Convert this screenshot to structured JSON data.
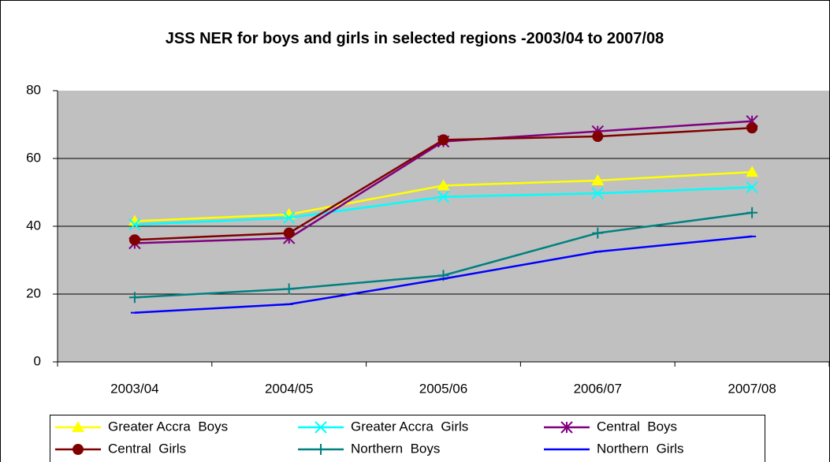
{
  "chart_data": {
    "type": "line",
    "title": "JSS NER for boys and girls in selected regions -2003/04 to 2007/08",
    "categories": [
      "2003/04",
      "2004/05",
      "2005/06",
      "2006/07",
      "2007/08"
    ],
    "series": [
      {
        "name": "Greater Accra  Boys",
        "color": "#ffff00",
        "marker": "triangle",
        "values": [
          41.5,
          43.5,
          52,
          53.5,
          56
        ]
      },
      {
        "name": "Greater Accra  Girls",
        "color": "#00ffff",
        "marker": "x",
        "values": [
          40.5,
          42.5,
          48.7,
          49.7,
          51.5
        ]
      },
      {
        "name": "Central  Boys",
        "color": "#800080",
        "marker": "asterisk",
        "values": [
          35,
          36.5,
          65,
          68,
          71
        ]
      },
      {
        "name": "Central  Girls",
        "color": "#800000",
        "marker": "circle",
        "values": [
          36,
          38,
          65.5,
          66.5,
          69
        ]
      },
      {
        "name": "Northern  Boys",
        "color": "#008080",
        "marker": "plus",
        "values": [
          19,
          21.5,
          25.5,
          38,
          44
        ]
      },
      {
        "name": "Northern  Girls",
        "color": "#0000ff",
        "marker": "dash",
        "values": [
          14.5,
          17,
          24.5,
          32.5,
          37
        ]
      }
    ],
    "ylim": [
      0,
      80
    ],
    "yticks": [
      0,
      20,
      40,
      60,
      80
    ],
    "grid": true,
    "legend": "bottom"
  }
}
